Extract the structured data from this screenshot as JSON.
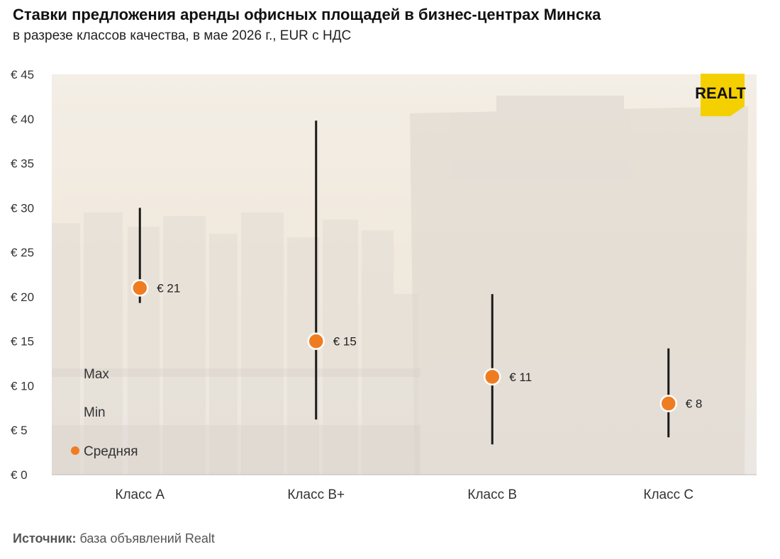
{
  "header": {
    "title": "Ставки предложения аренды офисных площадей в бизнес-центрах Минска",
    "subtitle": "в разрезе классов качества, в мае 2026 г., EUR с НДС"
  },
  "source": {
    "label": "Источник:",
    "text": " база объявлений Realt"
  },
  "logo": {
    "text": "REALT",
    "color": "#f5d000"
  },
  "legend": {
    "max_label": "Max",
    "min_label": "Min",
    "avg_label": "Средняя"
  },
  "colors": {
    "accent": "#f07c22",
    "range_line": "#1a1a1a",
    "background_tint": "#efe9df"
  },
  "chart_data": {
    "type": "range-dot",
    "title": "Ставки предложения аренды офисных площадей в бизнес-центрах Минска",
    "subtitle": "в разрезе классов качества, в мае 2026 г., EUR с НДС",
    "categories": [
      "Класс А",
      "Класс B+",
      "Класс B",
      "Класс C"
    ],
    "series": [
      {
        "name": "Max",
        "values": [
          30,
          39.8,
          20.3,
          14.2
        ]
      },
      {
        "name": "Min",
        "values": [
          19.3,
          6.2,
          3.4,
          4.2
        ]
      },
      {
        "name": "Средняя",
        "values": [
          21,
          15,
          11,
          8
        ]
      }
    ],
    "avg_labels": [
      "€ 21",
      "€ 15",
      "€ 11",
      "€ 8"
    ],
    "ylim": [
      0,
      45
    ],
    "yticks": [
      0,
      5,
      10,
      15,
      20,
      25,
      30,
      35,
      40,
      45
    ],
    "ytick_labels": [
      "€ 0",
      "€ 5",
      "€ 10",
      "€ 15",
      "€ 20",
      "€ 25",
      "€ 30",
      "€ 35",
      "€ 40",
      "€ 45"
    ],
    "grid": false,
    "legend_position": "bottom-left"
  }
}
